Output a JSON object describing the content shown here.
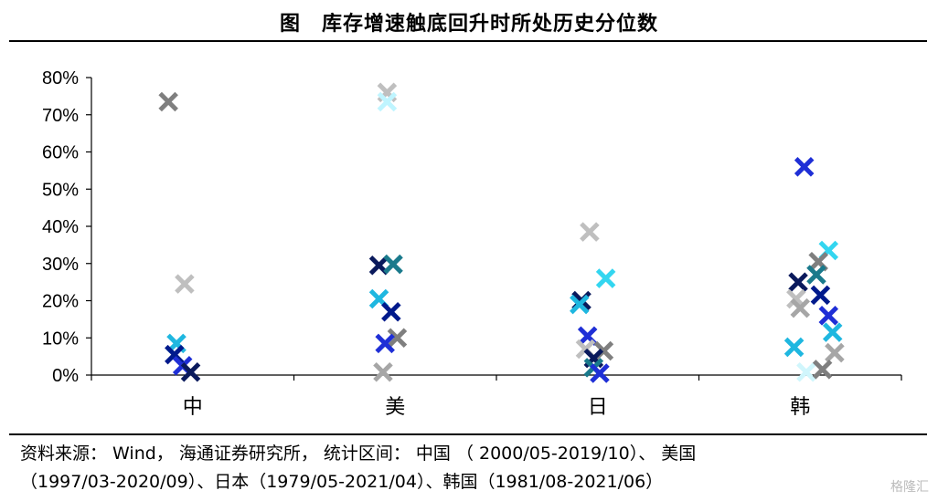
{
  "title": "图　库存增速触底回升时所处历史分位数",
  "source_lines": [
    "资料来源： Wind， 海通证券研究所， 统计区间： 中国 （ 2000/05-2019/10）、 美国",
    "（1997/03-2020/09）、日本（1979/05-2021/04）、韩国（1981/08-2021/06）"
  ],
  "watermark": "格隆汇",
  "chart_data": {
    "type": "scatter",
    "title": "库存增速触底回升时所处历史分位数",
    "categories": [
      "中",
      "美",
      "日",
      "韩"
    ],
    "ylim": [
      0,
      80
    ],
    "yticks": [
      0,
      10,
      20,
      30,
      40,
      50,
      60,
      70,
      80
    ],
    "ytick_labels": [
      "0%",
      "10%",
      "20%",
      "30%",
      "40%",
      "50%",
      "60%",
      "70%",
      "80%"
    ],
    "grid": false,
    "marker": "x",
    "points": [
      {
        "cat": 0,
        "offset": -0.12,
        "y": 73.5,
        "color": "#7f7f7f"
      },
      {
        "cat": 0,
        "offset": -0.04,
        "y": 24.5,
        "color": "#bfbfbf"
      },
      {
        "cat": 0,
        "offset": -0.08,
        "y": 8.5,
        "color": "#1fb7e0"
      },
      {
        "cat": 0,
        "offset": -0.09,
        "y": 5.5,
        "color": "#001a8c"
      },
      {
        "cat": 0,
        "offset": -0.05,
        "y": 2.5,
        "color": "#1f2fd6"
      },
      {
        "cat": 0,
        "offset": -0.01,
        "y": 0.8,
        "color": "#0a1a5c"
      },
      {
        "cat": 1,
        "offset": -0.04,
        "y": 76.0,
        "color": "#bfbfbf"
      },
      {
        "cat": 1,
        "offset": -0.04,
        "y": 73.5,
        "color": "#bff5ff"
      },
      {
        "cat": 1,
        "offset": -0.08,
        "y": 29.5,
        "color": "#0a1a5c"
      },
      {
        "cat": 1,
        "offset": -0.01,
        "y": 29.8,
        "color": "#1a7a8c"
      },
      {
        "cat": 1,
        "offset": -0.08,
        "y": 20.5,
        "color": "#1fb7e0"
      },
      {
        "cat": 1,
        "offset": -0.02,
        "y": 17.0,
        "color": "#001a8c"
      },
      {
        "cat": 1,
        "offset": 0.01,
        "y": 10.0,
        "color": "#7f7f7f"
      },
      {
        "cat": 1,
        "offset": -0.05,
        "y": 8.5,
        "color": "#1f2fd6"
      },
      {
        "cat": 1,
        "offset": -0.06,
        "y": 0.8,
        "color": "#a6a6a6"
      },
      {
        "cat": 2,
        "offset": -0.04,
        "y": 38.5,
        "color": "#bfbfbf"
      },
      {
        "cat": 2,
        "offset": 0.04,
        "y": 26.0,
        "color": "#33d6f0"
      },
      {
        "cat": 2,
        "offset": -0.08,
        "y": 20.0,
        "color": "#0a1a5c"
      },
      {
        "cat": 2,
        "offset": -0.09,
        "y": 19.0,
        "color": "#1fb7e0"
      },
      {
        "cat": 2,
        "offset": -0.05,
        "y": 10.5,
        "color": "#1f2fd6"
      },
      {
        "cat": 2,
        "offset": -0.06,
        "y": 7.0,
        "color": "#bfbfbf"
      },
      {
        "cat": 2,
        "offset": 0.03,
        "y": 6.5,
        "color": "#7f7f7f"
      },
      {
        "cat": 2,
        "offset": -0.02,
        "y": 4.5,
        "color": "#0a1a5c"
      },
      {
        "cat": 2,
        "offset": -0.02,
        "y": 2.0,
        "color": "#1a7a8c"
      },
      {
        "cat": 2,
        "offset": 0.01,
        "y": 0.5,
        "color": "#1f2fd6"
      },
      {
        "cat": 3,
        "offset": 0.02,
        "y": 56.0,
        "color": "#1f2fd6"
      },
      {
        "cat": 3,
        "offset": 0.14,
        "y": 33.5,
        "color": "#33d6f0"
      },
      {
        "cat": 3,
        "offset": 0.09,
        "y": 30.5,
        "color": "#7f7f7f"
      },
      {
        "cat": 3,
        "offset": 0.08,
        "y": 27.0,
        "color": "#1a7a8c"
      },
      {
        "cat": 3,
        "offset": -0.01,
        "y": 25.0,
        "color": "#0a1a5c"
      },
      {
        "cat": 3,
        "offset": 0.1,
        "y": 21.5,
        "color": "#001a8c"
      },
      {
        "cat": 3,
        "offset": -0.02,
        "y": 20.5,
        "color": "#bfbfbf"
      },
      {
        "cat": 3,
        "offset": 0.0,
        "y": 18.0,
        "color": "#a6a6a6"
      },
      {
        "cat": 3,
        "offset": 0.14,
        "y": 16.0,
        "color": "#1f2fd6"
      },
      {
        "cat": 3,
        "offset": 0.16,
        "y": 11.5,
        "color": "#1fb7e0"
      },
      {
        "cat": 3,
        "offset": -0.03,
        "y": 7.5,
        "color": "#1fb7e0"
      },
      {
        "cat": 3,
        "offset": 0.17,
        "y": 6.0,
        "color": "#a6a6a6"
      },
      {
        "cat": 3,
        "offset": 0.03,
        "y": 0.8,
        "color": "#d0f6fc"
      },
      {
        "cat": 3,
        "offset": 0.11,
        "y": 1.5,
        "color": "#7f7f7f"
      }
    ]
  }
}
